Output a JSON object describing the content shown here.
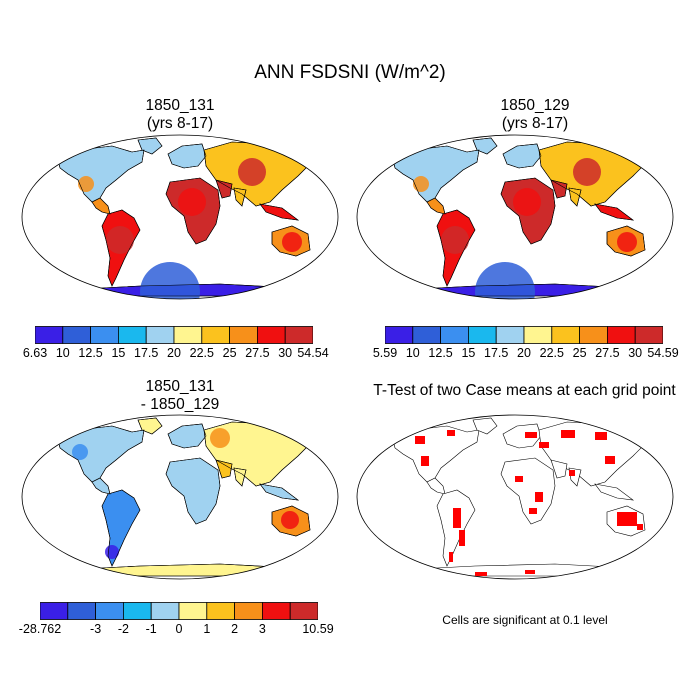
{
  "title": "ANN FSDSNI (W/m^2)",
  "panels": [
    {
      "id": "p1",
      "title_line1": "1850_131",
      "title_line2": "(yrs 8-17)",
      "kind": "field",
      "colorbar": {
        "colors": [
          "#3a1fe6",
          "#2f5fd8",
          "#3b8ff0",
          "#1ab8ee",
          "#a0d2f0",
          "#fff590",
          "#fbc21e",
          "#f7901a",
          "#f01010",
          "#cd2a2a"
        ],
        "labels": [
          "6.63",
          "10",
          "12.5",
          "15",
          "17.5",
          "20",
          "22.5",
          "25",
          "27.5",
          "30",
          "54.54"
        ]
      }
    },
    {
      "id": "p2",
      "title_line1": "1850_129",
      "title_line2": "(yrs 8-17)",
      "kind": "field",
      "colorbar": {
        "colors": [
          "#3a1fe6",
          "#2f5fd8",
          "#3b8ff0",
          "#1ab8ee",
          "#a0d2f0",
          "#fff590",
          "#fbc21e",
          "#f7901a",
          "#f01010",
          "#cd2a2a"
        ],
        "labels": [
          "5.59",
          "10",
          "12.5",
          "15",
          "17.5",
          "20",
          "22.5",
          "25",
          "27.5",
          "30",
          "54.59"
        ]
      }
    },
    {
      "id": "p3",
      "title_line1": "1850_131",
      "title_line2": "- 1850_129",
      "kind": "diff",
      "colorbar": {
        "colors": [
          "#3a1fe6",
          "#2f5fd8",
          "#3b8ff0",
          "#1ab8ee",
          "#a0d2f0",
          "#fff590",
          "#fbc21e",
          "#f7901a",
          "#f01010",
          "#cd2a2a"
        ],
        "labels": [
          "-28.762",
          "-3",
          "-2",
          "-1",
          "0",
          "1",
          "2",
          "3",
          "10.59"
        ],
        "label_slots": [
          0,
          2,
          3,
          4,
          5,
          6,
          7,
          8,
          10
        ]
      }
    },
    {
      "id": "p4",
      "title_line1": "T-Test of two Case means at each grid point",
      "title_line2": "",
      "kind": "ttest"
    }
  ],
  "note": "Cells are significant at 0.1 level"
}
